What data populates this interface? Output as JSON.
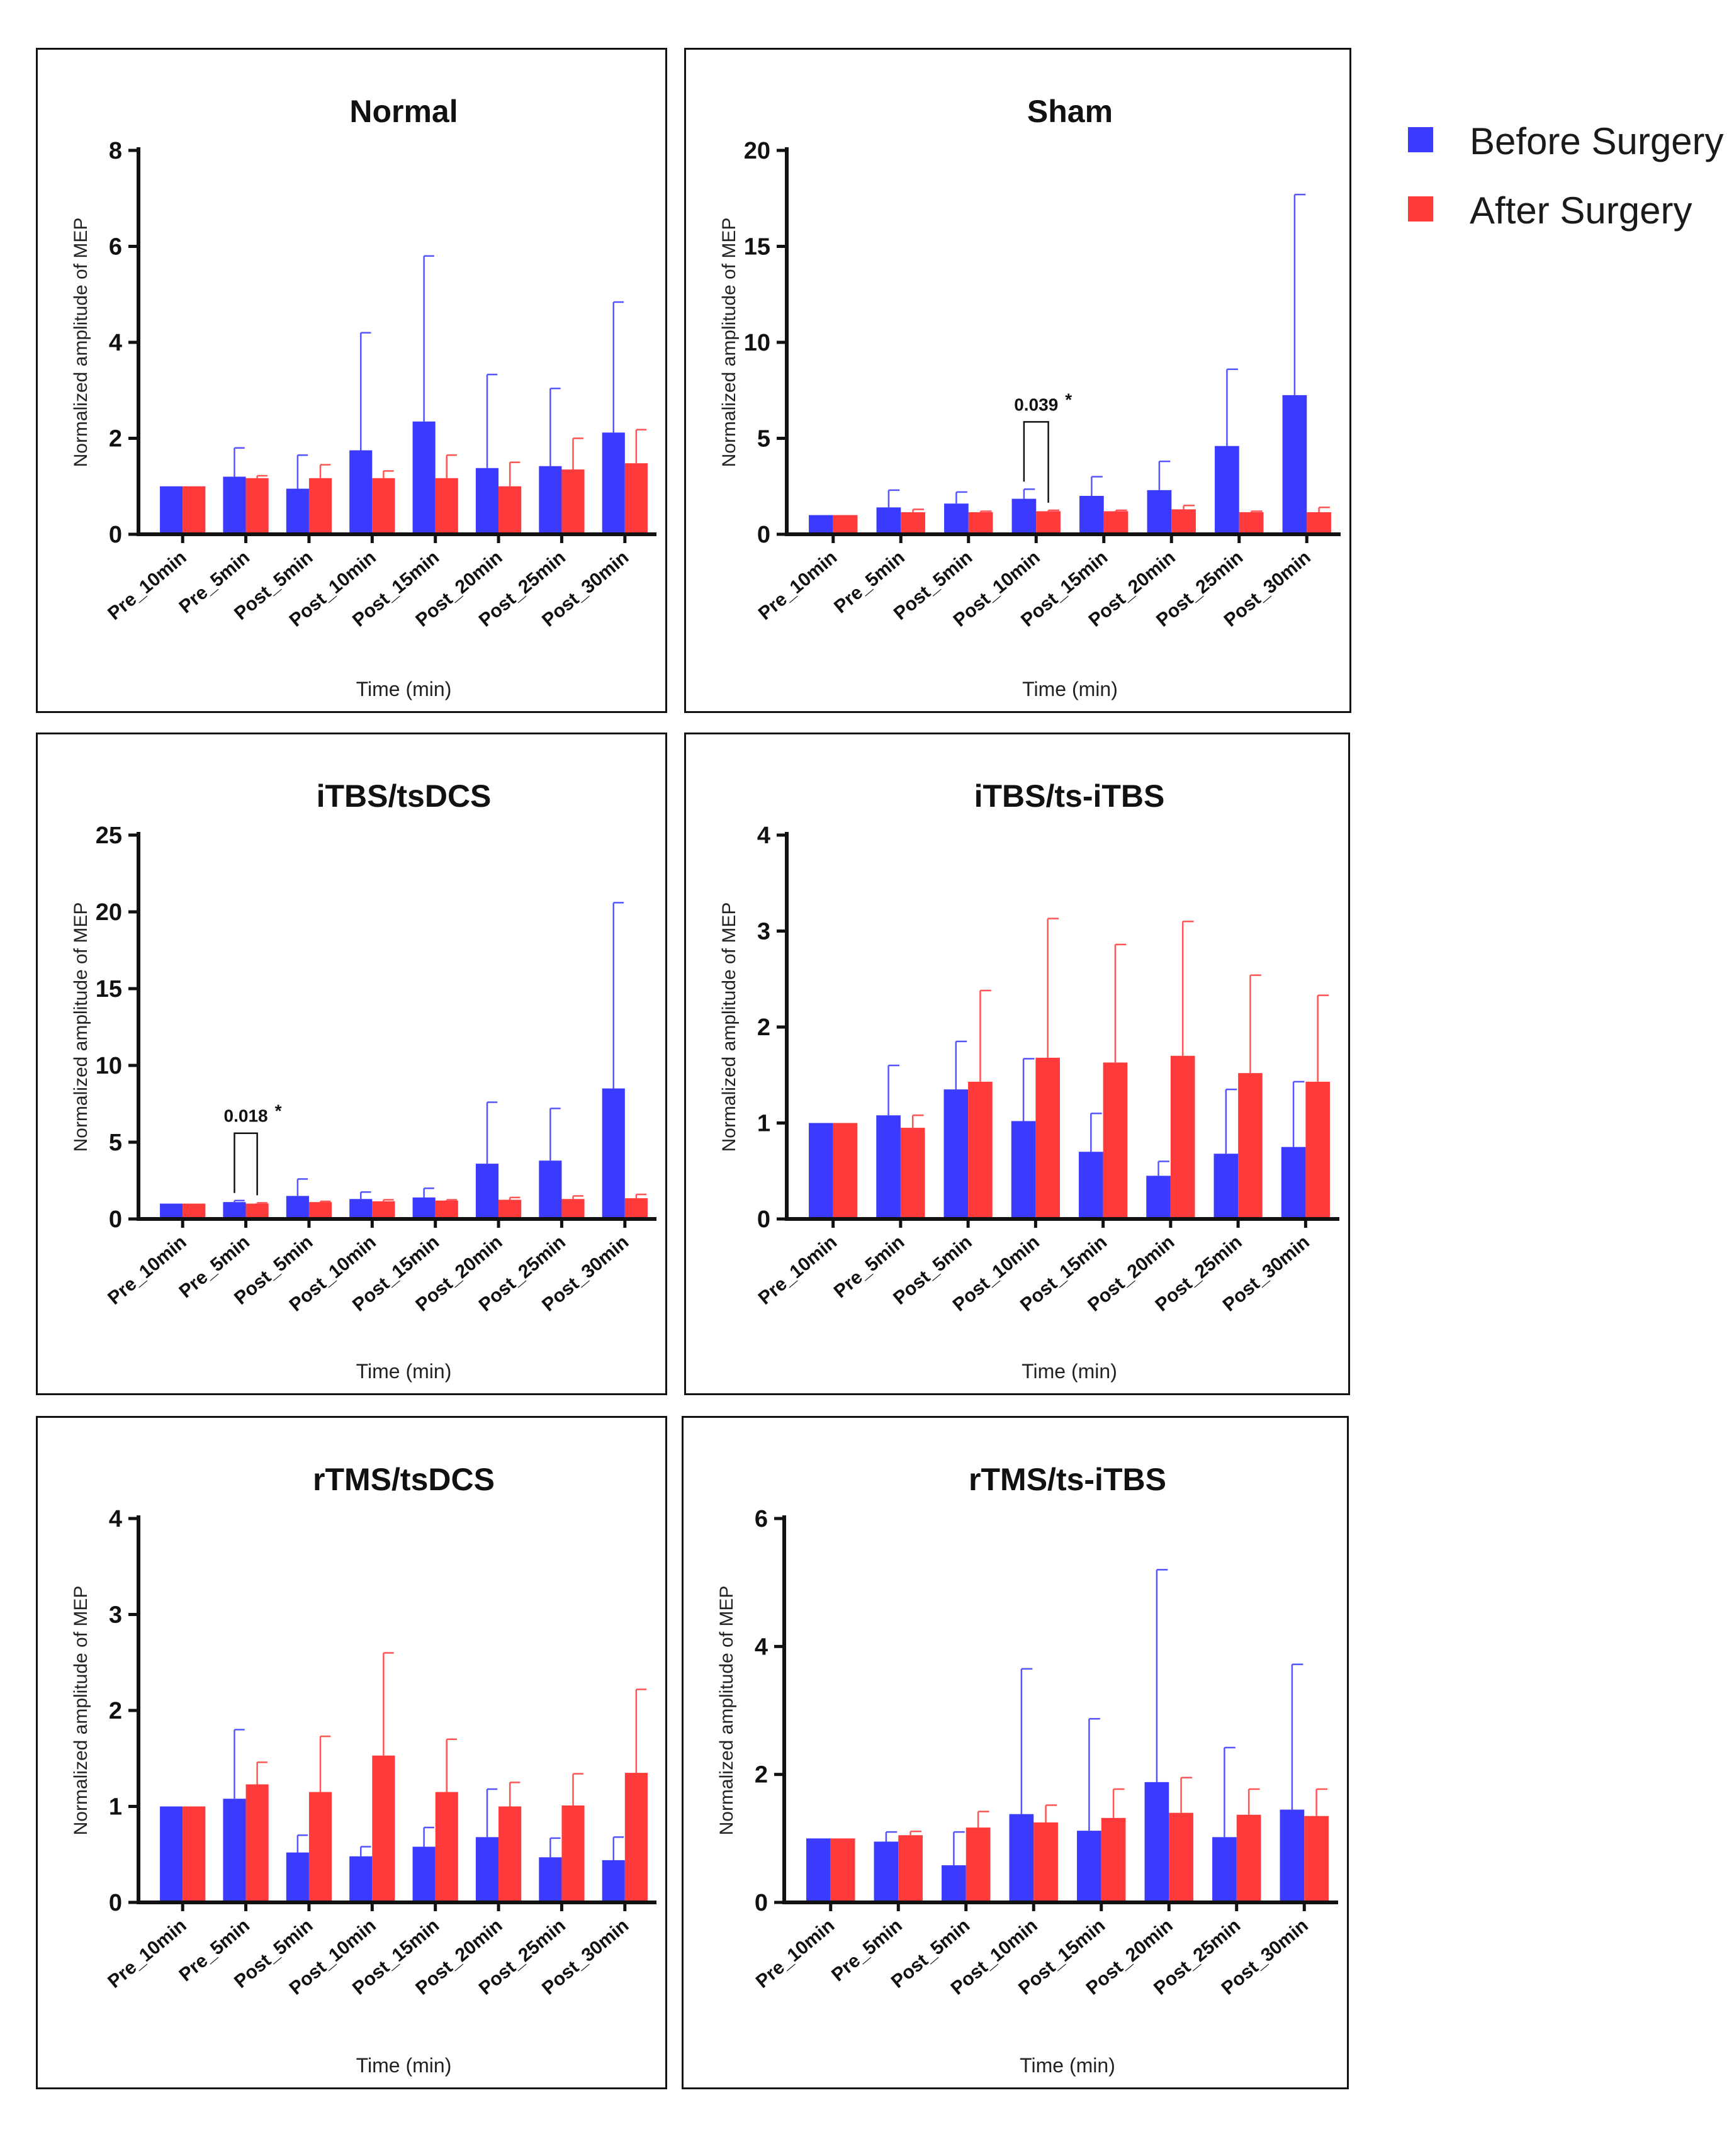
{
  "colors": {
    "before": "#3b3bff",
    "after": "#ff3a3a",
    "axis": "#111111",
    "error_before": "#5555ff",
    "error_after": "#ff5555"
  },
  "legend": {
    "before_label": "Before Surgery",
    "after_label": "After Surgery"
  },
  "chart_data": [
    {
      "type": "bar",
      "title": "Normal",
      "xlabel": "Time (min)",
      "ylabel": "Normalized amplitude of  MEP",
      "categories": [
        "Pre_10min",
        "Pre_5min",
        "Post_5min",
        "Post_10min",
        "Post_15min",
        "Post_20min",
        "Post_25min",
        "Post_30min"
      ],
      "ylim": [
        0,
        8
      ],
      "yticks": [
        0,
        2,
        4,
        6,
        8
      ],
      "series": [
        {
          "name": "Before Surgery",
          "values": [
            1.0,
            1.2,
            0.95,
            1.75,
            2.35,
            1.38,
            1.42,
            2.12
          ],
          "errors": [
            0,
            0.6,
            0.7,
            2.45,
            3.45,
            1.95,
            1.62,
            2.72
          ]
        },
        {
          "name": "After Surgery",
          "values": [
            1.0,
            1.17,
            1.17,
            1.17,
            1.17,
            1.0,
            1.35,
            1.48
          ],
          "errors": [
            0,
            0.05,
            0.28,
            0.15,
            0.48,
            0.5,
            0.65,
            0.7
          ]
        }
      ],
      "annotations": []
    },
    {
      "type": "bar",
      "title": "Sham",
      "xlabel": "Time (min)",
      "ylabel": "Normalized amplitude of  MEP",
      "categories": [
        "Pre_10min",
        "Pre_5min",
        "Post_5min",
        "Post_10min",
        "Post_15min",
        "Post_20min",
        "Post_25min",
        "Post_30min"
      ],
      "ylim": [
        0,
        20
      ],
      "yticks": [
        0,
        5,
        10,
        15,
        20
      ],
      "series": [
        {
          "name": "Before Surgery",
          "values": [
            1.0,
            1.4,
            1.6,
            1.85,
            2.0,
            2.3,
            4.6,
            7.25
          ],
          "errors": [
            0,
            0.9,
            0.6,
            0.5,
            1.0,
            1.5,
            4.0,
            10.45
          ]
        },
        {
          "name": "After Surgery",
          "values": [
            1.0,
            1.15,
            1.15,
            1.2,
            1.2,
            1.3,
            1.15,
            1.15
          ],
          "errors": [
            0,
            0.15,
            0.05,
            0.05,
            0.05,
            0.2,
            0.05,
            0.25
          ]
        }
      ],
      "annotations": [
        {
          "text": "0.039",
          "star": "*",
          "category_index": 3
        }
      ]
    },
    {
      "type": "bar",
      "title": "iTBS/tsDCS",
      "xlabel": "Time (min)",
      "ylabel": "Normalized amplitude of  MEP",
      "categories": [
        "Pre_10min",
        "Pre_5min",
        "Post_5min",
        "Post_10min",
        "Post_15min",
        "Post_20min",
        "Post_25min",
        "Post_30min"
      ],
      "ylim": [
        0,
        25
      ],
      "yticks": [
        0,
        5,
        10,
        15,
        20,
        25
      ],
      "series": [
        {
          "name": "Before Surgery",
          "values": [
            1.0,
            1.1,
            1.5,
            1.3,
            1.4,
            3.6,
            3.8,
            8.5
          ],
          "errors": [
            0,
            0.1,
            1.1,
            0.45,
            0.6,
            4.0,
            3.4,
            12.1
          ]
        },
        {
          "name": "After Surgery",
          "values": [
            1.0,
            1.0,
            1.1,
            1.15,
            1.2,
            1.25,
            1.3,
            1.35
          ],
          "errors": [
            0,
            0.05,
            0.05,
            0.1,
            0.05,
            0.15,
            0.2,
            0.25
          ]
        }
      ],
      "annotations": [
        {
          "text": "0.018",
          "star": "*",
          "category_index": 1
        }
      ]
    },
    {
      "type": "bar",
      "title": "iTBS/ts-iTBS",
      "xlabel": "Time (min)",
      "ylabel": "Normalized amplitude of  MEP",
      "categories": [
        "Pre_10min",
        "Pre_5min",
        "Post_5min",
        "Post_10min",
        "Post_15min",
        "Post_20min",
        "Post_25min",
        "Post_30min"
      ],
      "ylim": [
        0,
        4
      ],
      "yticks": [
        0,
        1,
        2,
        3,
        4
      ],
      "series": [
        {
          "name": "Before Surgery",
          "values": [
            1.0,
            1.08,
            1.35,
            1.02,
            0.7,
            0.45,
            0.68,
            0.75
          ],
          "errors": [
            0,
            0.52,
            0.5,
            0.65,
            0.4,
            0.15,
            0.67,
            0.68
          ]
        },
        {
          "name": "After Surgery",
          "values": [
            1.0,
            0.95,
            1.43,
            1.68,
            1.63,
            1.7,
            1.52,
            1.43
          ],
          "errors": [
            0,
            0.13,
            0.95,
            1.45,
            1.23,
            1.4,
            1.02,
            0.9
          ]
        }
      ],
      "annotations": []
    },
    {
      "type": "bar",
      "title": "rTMS/tsDCS",
      "xlabel": "Time (min)",
      "ylabel": "Normalized amplitude of  MEP",
      "categories": [
        "Pre_10min",
        "Pre_5min",
        "Post_5min",
        "Post_10min",
        "Post_15min",
        "Post_20min",
        "Post_25min",
        "Post_30min"
      ],
      "ylim": [
        0,
        4
      ],
      "yticks": [
        0,
        1,
        2,
        3,
        4
      ],
      "series": [
        {
          "name": "Before Surgery",
          "values": [
            1.0,
            1.08,
            0.52,
            0.48,
            0.58,
            0.68,
            0.47,
            0.44
          ],
          "errors": [
            0,
            0.72,
            0.18,
            0.1,
            0.2,
            0.5,
            0.2,
            0.24
          ]
        },
        {
          "name": "After Surgery",
          "values": [
            1.0,
            1.23,
            1.15,
            1.53,
            1.15,
            1.0,
            1.01,
            1.35
          ],
          "errors": [
            0,
            0.23,
            0.58,
            1.07,
            0.55,
            0.25,
            0.33,
            0.87
          ]
        }
      ],
      "annotations": []
    },
    {
      "type": "bar",
      "title": "rTMS/ts-iTBS",
      "xlabel": "Time (min)",
      "ylabel": "Normalized amplitude of  MEP",
      "categories": [
        "Pre_10min",
        "Pre_5min",
        "Post_5min",
        "Post_10min",
        "Post_15min",
        "Post_20min",
        "Post_25min",
        "Post_30min"
      ],
      "ylim": [
        0,
        6
      ],
      "yticks": [
        0,
        2,
        4,
        6
      ],
      "series": [
        {
          "name": "Before Surgery",
          "values": [
            1.0,
            0.95,
            0.58,
            1.38,
            1.12,
            1.88,
            1.02,
            1.45
          ],
          "errors": [
            0,
            0.15,
            0.52,
            2.27,
            1.75,
            3.32,
            1.4,
            2.27
          ]
        },
        {
          "name": "After Surgery",
          "values": [
            1.0,
            1.05,
            1.17,
            1.25,
            1.32,
            1.4,
            1.37,
            1.35
          ],
          "errors": [
            0,
            0.06,
            0.25,
            0.27,
            0.45,
            0.55,
            0.4,
            0.42
          ]
        }
      ],
      "annotations": []
    }
  ]
}
